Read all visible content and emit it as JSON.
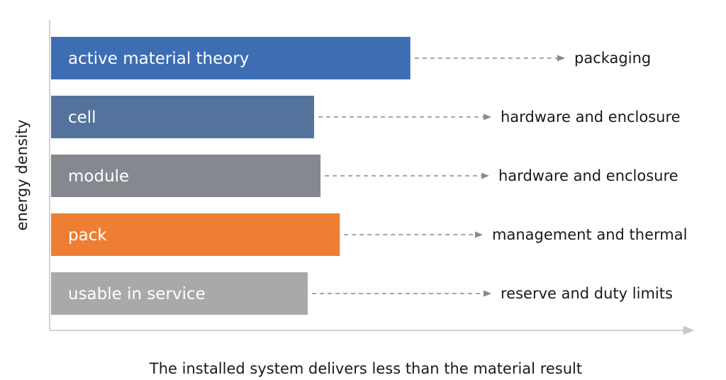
{
  "chart_data": {
    "type": "bar",
    "orientation": "horizontal",
    "xlabel": "The installed system delivers less than the material result",
    "ylabel": "energy density",
    "xlim": [
      0,
      100
    ],
    "grid": false,
    "legend": "none",
    "categories": [
      "active material theory",
      "cell",
      "module",
      "pack",
      "usable in service"
    ],
    "values": [
      56,
      41,
      42,
      45,
      40
    ],
    "annotations": [
      "packaging",
      "hardware and enclosure",
      "hardware and enclosure",
      "management and thermal",
      "reserve and duty limits"
    ],
    "colors": [
      "#3d6db3",
      "#53739c",
      "#85898f",
      "#ee7e33",
      "#a8a9ab"
    ]
  }
}
